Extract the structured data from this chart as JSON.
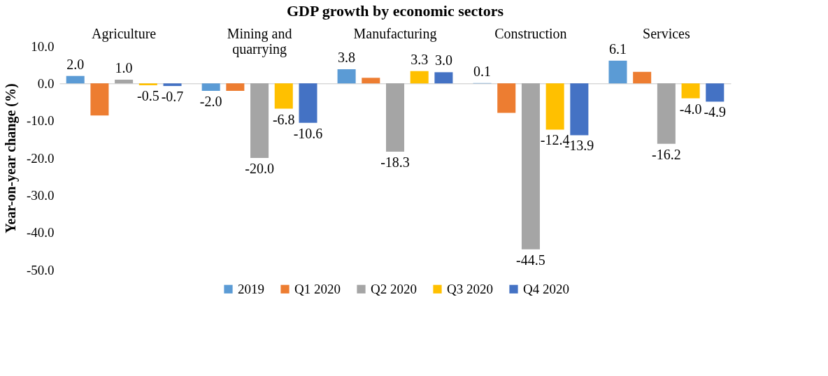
{
  "chart_data": {
    "type": "bar",
    "title": "GDP growth by economic sectors",
    "ylabel": "Year-on-year change (%)",
    "categories": [
      "Agriculture",
      "Mining and quarrying",
      "Manufacturing",
      "Construction",
      "Services"
    ],
    "series": [
      {
        "name": "2019",
        "color": "#5b9bd5",
        "values": [
          2.0,
          -2.0,
          3.8,
          0.1,
          6.1
        ],
        "value_labels": [
          "2.0",
          "-2.0",
          "3.8",
          "0.1",
          "6.1"
        ]
      },
      {
        "name": "Q1 2020",
        "color": "#ed7d31",
        "values": [
          -8.6,
          -2.0,
          1.5,
          -7.9,
          3.1
        ],
        "value_labels": [
          null,
          null,
          null,
          null,
          null
        ]
      },
      {
        "name": "Q2 2020",
        "color": "#a5a5a5",
        "values": [
          1.0,
          -20.0,
          -18.3,
          -44.5,
          -16.2
        ],
        "value_labels": [
          "1.0",
          "-20.0",
          "-18.3",
          "-44.5",
          "-16.2"
        ]
      },
      {
        "name": "Q3 2020",
        "color": "#ffc000",
        "values": [
          -0.5,
          -6.8,
          3.3,
          -12.4,
          -4.0
        ],
        "value_labels": [
          "-0.5",
          "-6.8",
          "3.3",
          "-12.4",
          "-4.0"
        ]
      },
      {
        "name": "Q4 2020",
        "color": "#4472c4",
        "values": [
          -0.7,
          -10.6,
          3.0,
          -13.9,
          -4.9
        ],
        "value_labels": [
          "-0.7",
          "-10.6",
          "3.0",
          "-13.9",
          "-4.9"
        ]
      }
    ],
    "ylim": [
      -50,
      10
    ],
    "yticks": [
      {
        "value": -50,
        "label": "-50.0"
      },
      {
        "value": -40,
        "label": "-40.0"
      },
      {
        "value": -30,
        "label": "-30.0"
      },
      {
        "value": -20,
        "label": "-20.0"
      },
      {
        "value": -10,
        "label": "-10.0"
      },
      {
        "value": 0,
        "label": "0.0"
      },
      {
        "value": 10,
        "label": "10.0"
      }
    ],
    "grid": false,
    "legend": "bottom"
  }
}
